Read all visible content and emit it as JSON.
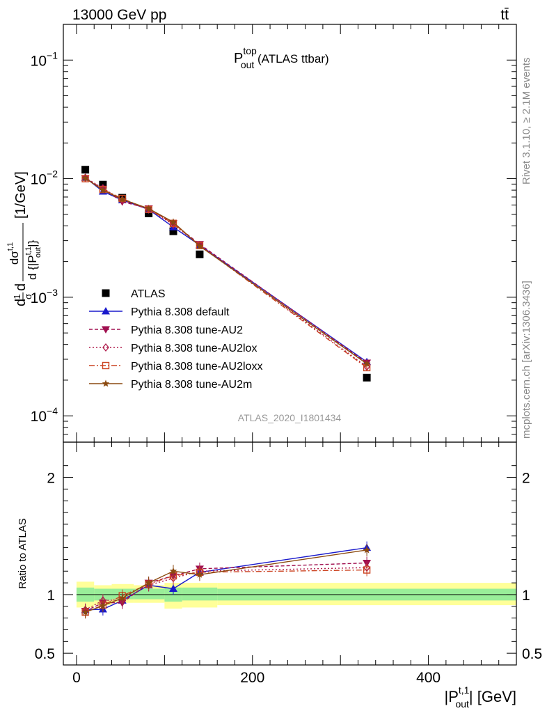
{
  "header": {
    "energy_label": "13000 GeV pp",
    "process_label": "tt̄"
  },
  "side_labels": {
    "rivet": "Rivet 3.1.10, ≥ 2.1M events",
    "mcplots": "mcplots.cern.ch [arXiv:1306.3436]"
  },
  "chart_data": [
    {
      "type": "line",
      "panel": "main",
      "title": "P_out^top (ATLAS ttbar)",
      "title_parts": {
        "base": "P",
        "sup": "top",
        "sub": "out",
        "rest": " (ATLAS ttbar)"
      },
      "analysis_id": "ATLAS_2020_I1801434",
      "ylabel": "(1/σ) dσ^{t,1} / d{|P_out^{t,1}|} [1/GeV]",
      "ylabel_parts": {
        "pre": "d",
        "num": "1",
        "den": "σ",
        "mid": "d",
        "frac_num": "dσ",
        "frac_num_sup": "t,1",
        "frac_den": "d {|P",
        "frac_den_sup": "t,1",
        "frac_den_sub": "out",
        "frac_den_close": "|}",
        "unit": "[1/GeV]"
      },
      "y_scale": "log",
      "ylim": [
        6e-05,
        0.2
      ],
      "xlim": [
        -15,
        500
      ],
      "y_ticks": [
        {
          "value": 0.1,
          "base": "10",
          "exp": "−1"
        },
        {
          "value": 0.01,
          "base": "10",
          "exp": "−2"
        },
        {
          "value": 0.001,
          "base": "10",
          "exp": "−3"
        },
        {
          "value": 0.0001,
          "base": "10",
          "exp": "−4"
        }
      ],
      "legend_position": "lower-left",
      "x": [
        10,
        30,
        52,
        82,
        110,
        140,
        330
      ],
      "series": [
        {
          "name": "ATLAS",
          "color": "#000000",
          "marker": "square",
          "dash": "",
          "values": [
            0.0119,
            0.0089,
            0.0069,
            0.0051,
            0.0036,
            0.0023,
            0.00021
          ]
        },
        {
          "name": "Pythia 8.308 default",
          "color": "#1a1acc",
          "marker": "triangle-up",
          "dash": "",
          "values": [
            0.0102,
            0.0078,
            0.0066,
            0.0055,
            0.0039,
            0.00275,
            0.000285
          ]
        },
        {
          "name": "Pythia 8.308 tune-AU2",
          "color": "#a01050",
          "marker": "triangle-down",
          "dash": "5,3",
          "values": [
            0.0101,
            0.0082,
            0.0064,
            0.0056,
            0.0042,
            0.0028,
            0.00028
          ]
        },
        {
          "name": "Pythia 8.308 tune-AU2lox",
          "color": "#b01c4c",
          "marker": "diamond-open",
          "dash": "2,3",
          "values": [
            0.0102,
            0.0083,
            0.0066,
            0.0055,
            0.0041,
            0.00276,
            0.00026
          ]
        },
        {
          "name": "Pythia 8.308 tune-AU2loxx",
          "color": "#cc4422",
          "marker": "square-open",
          "dash": "8,3,2,3",
          "values": [
            0.01,
            0.0081,
            0.0068,
            0.0055,
            0.0042,
            0.00273,
            0.000255
          ]
        },
        {
          "name": "Pythia 8.308 tune-AU2m",
          "color": "#8b4a10",
          "marker": "star",
          "dash": "",
          "values": [
            0.0101,
            0.008,
            0.0067,
            0.0056,
            0.0043,
            0.0027,
            0.000275
          ]
        }
      ]
    },
    {
      "type": "line",
      "panel": "ratio",
      "ylabel": "Ratio to ATLAS",
      "xlabel_parts": {
        "pre": "|P",
        "sup": "t,1",
        "sub": "out",
        "post": "| [GeV]"
      },
      "ylim": [
        0.4,
        2.3
      ],
      "xlim": [
        -15,
        500
      ],
      "y_ticks": [
        0.5,
        1,
        2
      ],
      "x_ticks": [
        0,
        200,
        400
      ],
      "x": [
        10,
        30,
        52,
        82,
        110,
        140,
        330
      ],
      "bands": [
        {
          "x0": 0,
          "x1": 20,
          "green": [
            0.94,
            1.06
          ],
          "yellow": [
            0.89,
            1.11
          ]
        },
        {
          "x0": 20,
          "x1": 40,
          "green": [
            0.95,
            1.05
          ],
          "yellow": [
            0.91,
            1.08
          ]
        },
        {
          "x0": 40,
          "x1": 65,
          "green": [
            0.96,
            1.05
          ],
          "yellow": [
            0.93,
            1.09
          ]
        },
        {
          "x0": 65,
          "x1": 100,
          "green": [
            0.96,
            1.05
          ],
          "yellow": [
            0.93,
            1.08
          ]
        },
        {
          "x0": 100,
          "x1": 120,
          "green": [
            0.94,
            1.06
          ],
          "yellow": [
            0.88,
            1.1
          ]
        },
        {
          "x0": 120,
          "x1": 160,
          "green": [
            0.95,
            1.06
          ],
          "yellow": [
            0.89,
            1.1
          ]
        },
        {
          "x0": 160,
          "x1": 500,
          "green": [
            0.95,
            1.05
          ],
          "yellow": [
            0.91,
            1.1
          ]
        }
      ],
      "series": [
        {
          "name": "Pythia 8.308 default",
          "color": "#1a1acc",
          "marker": "triangle-up",
          "dash": "",
          "values": [
            0.87,
            0.875,
            0.95,
            1.08,
            1.05,
            1.19,
            1.4
          ]
        },
        {
          "name": "Pythia 8.308 tune-AU2",
          "color": "#a01050",
          "marker": "triangle-down",
          "dash": "5,3",
          "values": [
            0.86,
            0.93,
            0.93,
            1.1,
            1.16,
            1.22,
            1.27
          ]
        },
        {
          "name": "Pythia 8.308 tune-AU2lox",
          "color": "#b01c4c",
          "marker": "diamond-open",
          "dash": "2,3",
          "values": [
            0.87,
            0.95,
            0.955,
            1.08,
            1.14,
            1.2,
            1.23
          ]
        },
        {
          "name": "Pythia 8.308 tune-AU2loxx",
          "color": "#cc4422",
          "marker": "square-open",
          "dash": "8,3,2,3",
          "values": [
            0.85,
            0.91,
            0.99,
            1.09,
            1.16,
            1.19,
            1.21
          ]
        },
        {
          "name": "Pythia 8.308 tune-AU2m",
          "color": "#8b4a10",
          "marker": "star",
          "dash": "",
          "values": [
            0.85,
            0.905,
            0.97,
            1.1,
            1.2,
            1.17,
            1.38
          ]
        }
      ]
    }
  ]
}
